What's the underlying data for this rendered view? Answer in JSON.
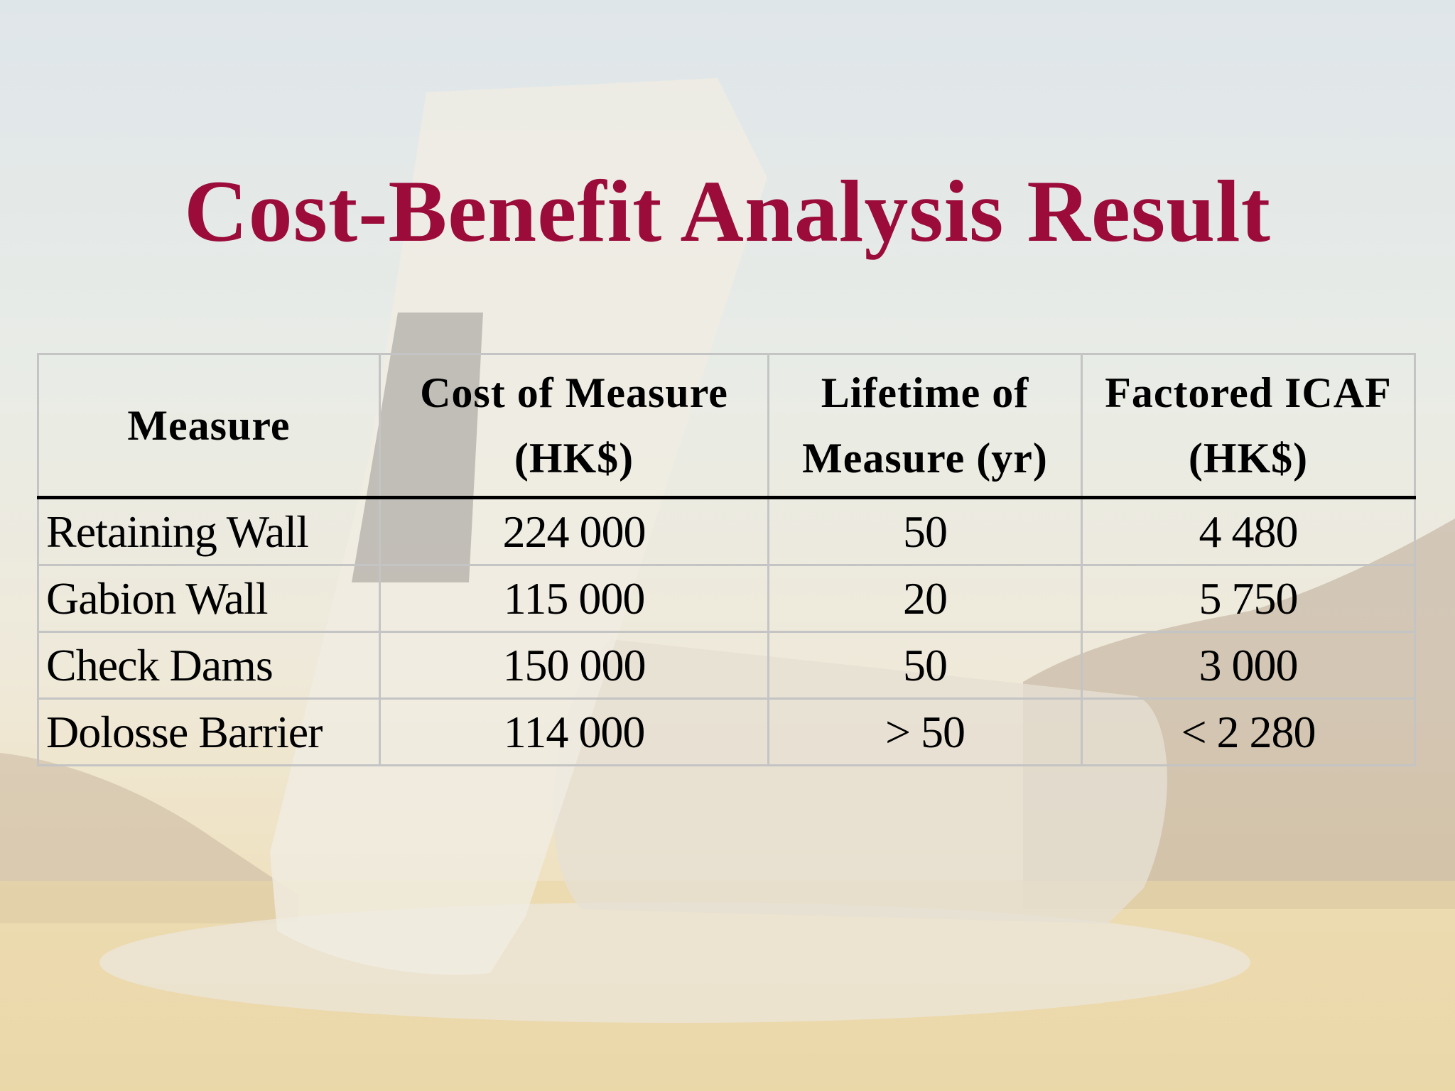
{
  "slide": {
    "title": "Cost-Benefit Analysis Result"
  },
  "table": {
    "headers": [
      {
        "line1": "Measure",
        "line2": ""
      },
      {
        "line1": "Cost of Measure",
        "line2": "(HK$)"
      },
      {
        "line1": "Lifetime of",
        "line2": "Measure (yr)"
      },
      {
        "line1": "Factored ICAF",
        "line2": "(HK$)"
      }
    ],
    "rows": [
      [
        "Retaining Wall",
        "224 000",
        "50",
        "4 480"
      ],
      [
        "Gabion Wall",
        "115 000",
        "20",
        "5 750"
      ],
      [
        "Check Dams",
        "150 000",
        "50",
        "3 000"
      ],
      [
        "Dolosse Barrier",
        "114 000",
        "> 50",
        "< 2 280"
      ]
    ]
  },
  "colors": {
    "title": "#9b0c3b",
    "grid": "#c4c4c4",
    "header_rule": "#000000"
  }
}
